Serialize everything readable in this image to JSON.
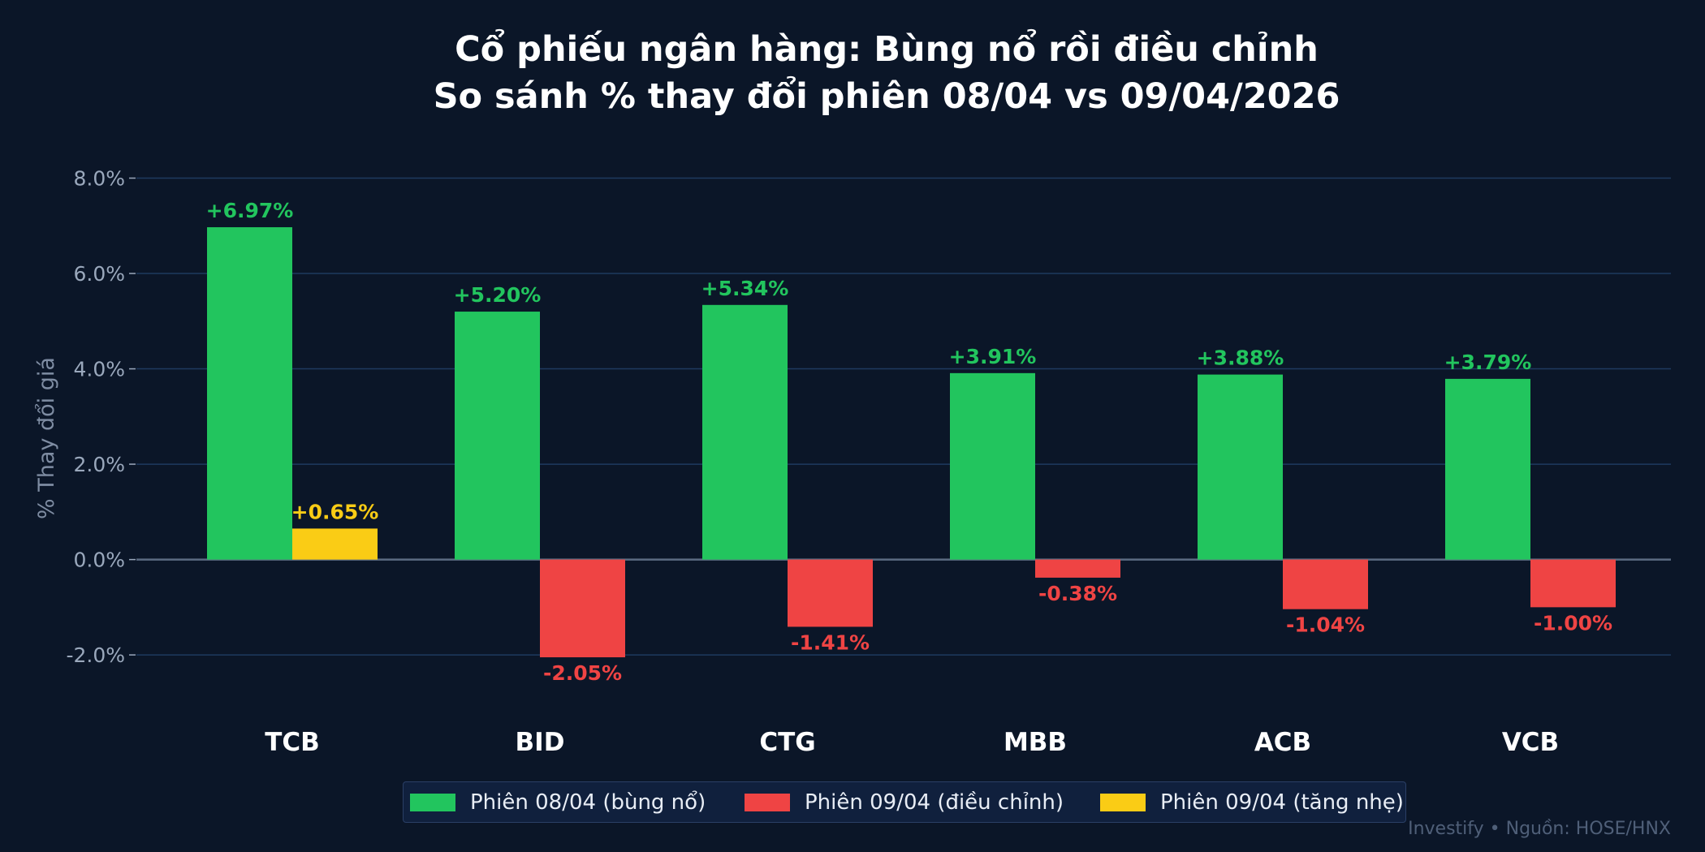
{
  "chart_data": {
    "type": "bar",
    "title": "Cổ phiếu ngân hàng: Bùng nổ rồi điều chỉnh",
    "subtitle": "So sánh % thay đổi phiên 08/04 vs 09/04/2026",
    "ylabel": "% Thay đổi giá",
    "xlabel": "",
    "categories": [
      "TCB",
      "BID",
      "CTG",
      "MBB",
      "ACB",
      "VCB"
    ],
    "series": [
      {
        "name": "Phiên 08/04 (bùng nổ)",
        "values": [
          6.97,
          5.2,
          5.34,
          3.91,
          3.88,
          3.79
        ],
        "labels": [
          "+6.97%",
          "+5.20%",
          "+5.34%",
          "+3.91%",
          "+3.88%",
          "+3.79%"
        ]
      },
      {
        "name": "Phiên 09/04",
        "values": [
          0.65,
          -2.05,
          -1.41,
          -0.38,
          -1.04,
          -1.0
        ],
        "labels": [
          "+0.65%",
          "-2.05%",
          "-1.41%",
          "-0.38%",
          "-1.04%",
          "-1.00%"
        ]
      }
    ],
    "ylim": [
      -2.9,
      8.4
    ],
    "yticks": [
      -2,
      0,
      2,
      4,
      6,
      8
    ],
    "ytick_labels": [
      "-2.0%",
      "0.0%",
      "2.0%",
      "4.0%",
      "6.0%",
      "8.0%"
    ],
    "grid": true,
    "legend_position": "bottom-center",
    "legend": [
      {
        "label": "Phiên 08/04 (bùng nổ)",
        "color": "#22c55e"
      },
      {
        "label": "Phiên 09/04 (điều chỉnh)",
        "color": "#ef4444"
      },
      {
        "label": "Phiên 09/04 (tăng nhẹ)",
        "color": "#facc15"
      }
    ],
    "colors": {
      "up": "#22c55e",
      "down": "#ef4444",
      "slight_up": "#facc15",
      "background": "#0b1628",
      "grid": "#1e3a5f",
      "zero_line": "#5b6b82",
      "tick_text": "#9aa8bc",
      "category_text": "#ffffff"
    }
  },
  "footer": "Investify  •  Nguồn: HOSE/HNX"
}
